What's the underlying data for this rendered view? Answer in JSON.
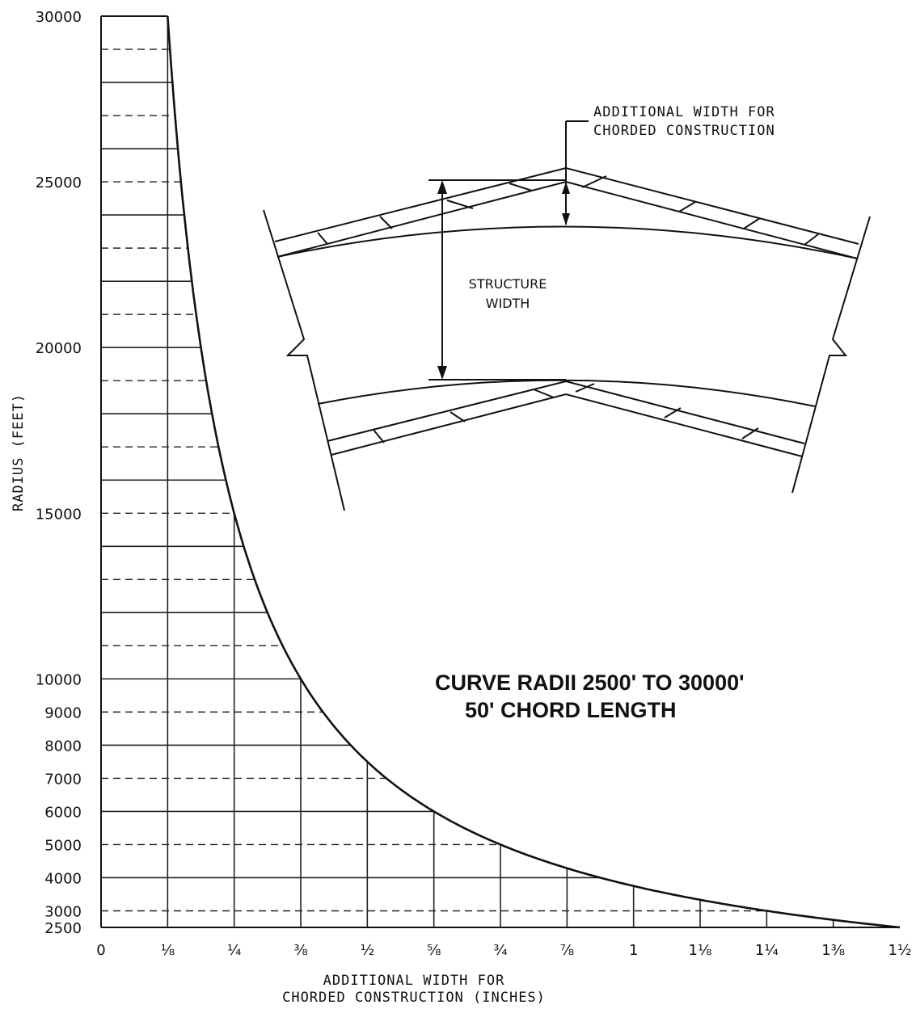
{
  "chart_data": {
    "type": "line",
    "title_lines": [
      "CURVE RADII 2500' TO 30000'",
      "50' CHORD LENGTH"
    ],
    "xlabel_lines": [
      "ADDITIONAL WIDTH FOR",
      "CHORDED CONSTRUCTION (INCHES)"
    ],
    "ylabel": "RADIUS (FEET)",
    "xlim": [
      0,
      1.5
    ],
    "ylim": [
      2500,
      30000
    ],
    "x_ticks": [
      0,
      0.125,
      0.25,
      0.375,
      0.5,
      0.625,
      0.75,
      0.875,
      1,
      1.125,
      1.25,
      1.375,
      1.5
    ],
    "x_tick_labels": [
      "0",
      "⅛",
      "¼",
      "⅜",
      "½",
      "⅝",
      "¾",
      "⅞",
      "1",
      "1⅛",
      "1¼",
      "1⅜",
      "1½"
    ],
    "y_tick_labels": [
      {
        "value": 30000,
        "label": "30000"
      },
      {
        "value": 25000,
        "label": "25000"
      },
      {
        "value": 20000,
        "label": "20000"
      },
      {
        "value": 15000,
        "label": "15000"
      },
      {
        "value": 10000,
        "label": "10000"
      },
      {
        "value": 9000,
        "label": "9000"
      },
      {
        "value": 8000,
        "label": "8000"
      },
      {
        "value": 7000,
        "label": "7000"
      },
      {
        "value": 6000,
        "label": "6000"
      },
      {
        "value": 5000,
        "label": "5000"
      },
      {
        "value": 4000,
        "label": "4000"
      },
      {
        "value": 3000,
        "label": "3000"
      },
      {
        "value": 2500,
        "label": "2500"
      }
    ],
    "series": [
      {
        "x": [
          0.125,
          0.25,
          0.375,
          0.5,
          0.625,
          0.75,
          0.875,
          1,
          1.125,
          1.25,
          1.375,
          1.5
        ],
        "y": [
          30000,
          15000,
          10000,
          7500,
          6000,
          5000,
          4286,
          3750,
          3333,
          3000,
          2727,
          2500
        ]
      }
    ],
    "grid": true,
    "color": "#111111"
  },
  "inset_diagram": {
    "label_additional_width": [
      "ADDITIONAL WIDTH FOR",
      "CHORDED CONSTRUCTION"
    ],
    "label_structure_width": [
      "STRUCTURE",
      "WIDTH"
    ]
  }
}
